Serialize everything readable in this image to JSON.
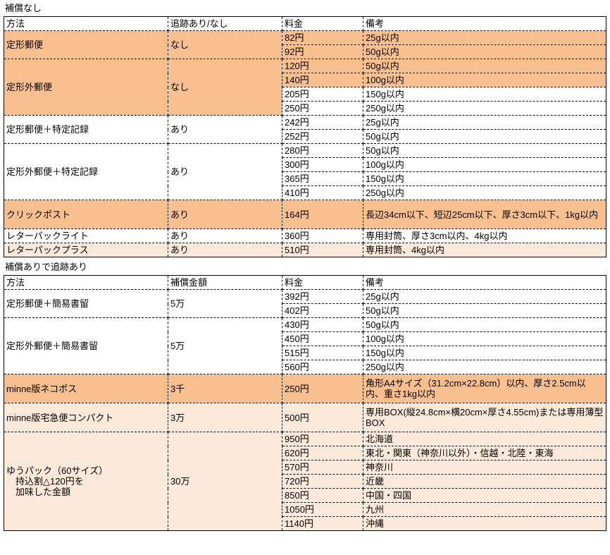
{
  "colors": {
    "fill-strong": "#FABF8F",
    "fill-light": "#FDE9D9",
    "border": "#000000",
    "text": "#000000",
    "background": "#FFFFFF"
  },
  "table1": {
    "title": "補償なし",
    "headers": [
      "方法",
      "追跡あり/なし",
      "料金",
      "備考"
    ],
    "rows": [
      {
        "method": "定形郵便",
        "tracking": "なし",
        "fee": "82円",
        "note": "25g以内"
      },
      {
        "fee": "92円",
        "note": "50g以内"
      },
      {
        "method": "定形外郵便",
        "tracking": "なし",
        "fee": "120円",
        "note": "50g以内"
      },
      {
        "fee": "140円",
        "note": "100g以内"
      },
      {
        "fee": "205円",
        "note": "150g以内"
      },
      {
        "fee": "250円",
        "note": "250g以内"
      },
      {
        "method": "定形郵便＋特定記録",
        "tracking": "あり",
        "fee": "242円",
        "note": "25g以内"
      },
      {
        "fee": "252円",
        "note": "50g以内"
      },
      {
        "method": "定形外郵便＋特定記録",
        "tracking": "あり",
        "fee": "280円",
        "note": "50g以内"
      },
      {
        "fee": "300円",
        "note": "100g以内"
      },
      {
        "fee": "365円",
        "note": "150g以内"
      },
      {
        "fee": "410円",
        "note": "250g以内"
      },
      {
        "method": "クリックポスト",
        "tracking": "あり",
        "fee": "164円",
        "note": "長辺34cm以下、短辺25cm以下、厚さ3cm以下、1kg以内"
      },
      {
        "method": "レターパックライト",
        "tracking": "あり",
        "fee": "360円",
        "note": "専用封筒、厚さ3cm以内、4kg以内"
      },
      {
        "method": "レターパックプラス",
        "tracking": "あり",
        "fee": "510円",
        "note": "専用封筒、4kg以内"
      }
    ]
  },
  "table2": {
    "title": "補償ありで追跡あり",
    "headers": [
      "方法",
      "補償金額",
      "料金",
      "備考"
    ],
    "rows": [
      {
        "method": "定形郵便＋簡易書留",
        "amount": "5万",
        "fee": "392円",
        "note": "25g以内"
      },
      {
        "fee": "402円",
        "note": "50g以内"
      },
      {
        "method": "定形外郵便＋簡易書留",
        "amount": "5万",
        "fee": "430円",
        "note": "50g以内"
      },
      {
        "fee": "450円",
        "note": "100g以内"
      },
      {
        "fee": "515円",
        "note": "150g以内"
      },
      {
        "fee": "560円",
        "note": "250g以内"
      },
      {
        "method": "minne版ネコポス",
        "amount": "3千",
        "fee": "250円",
        "note": "角形A4サイズ（31.2cm×22.8cm）以内、厚さ2.5cm以内、重さ1kg以内"
      },
      {
        "method": "minne版宅急便コンパクト",
        "amount": "3万",
        "fee": "500円",
        "note": "専用BOX(縦24.8cm×横20cm×厚さ4.55cm)または専用薄型BOX"
      },
      {
        "method": "ゆうパック（60サイズ）\n　持込割△120円を\n　加味した金額",
        "amount": "30万",
        "fee": "950円",
        "note": "北海道"
      },
      {
        "fee": "620円",
        "note": "東北・関東（神奈川以外）・信越・北陸・東海"
      },
      {
        "fee": "570円",
        "note": "神奈川"
      },
      {
        "fee": "720円",
        "note": "近畿"
      },
      {
        "fee": "850円",
        "note": "中国・四国"
      },
      {
        "fee": "1050円",
        "note": "九州"
      },
      {
        "fee": "1140円",
        "note": "沖縄"
      }
    ]
  }
}
